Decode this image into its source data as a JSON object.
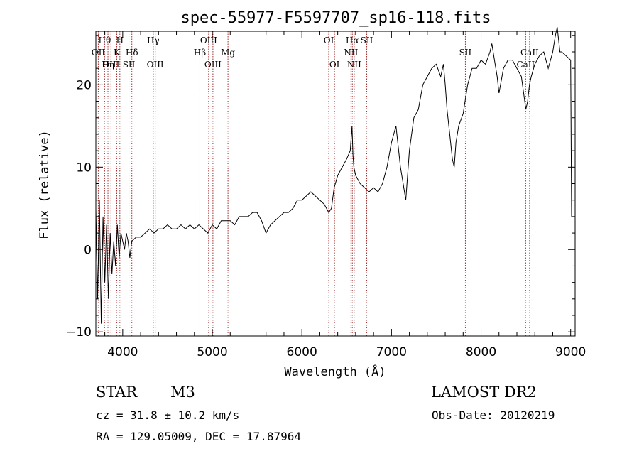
{
  "chart_data": {
    "type": "line",
    "title": "spec-55977-F5597707_sp16-118.fits",
    "xlabel": "Wavelength (Å)",
    "ylabel": "Flux (relative)",
    "xlim": [
      3700,
      9050
    ],
    "ylim": [
      -10.5,
      26.5
    ],
    "xticks": [
      4000,
      5000,
      6000,
      7000,
      8000,
      9000
    ],
    "yticks": [
      -10,
      0,
      10,
      20
    ],
    "grid": false,
    "series": [
      {
        "values_x": [
          3700,
          3720,
          3740,
          3760,
          3780,
          3800,
          3820,
          3840,
          3860,
          3880,
          3900,
          3920,
          3940,
          3960,
          3980,
          4000,
          4020,
          4040,
          4060,
          4080,
          4100,
          4150,
          4200,
          4250,
          4300,
          4350,
          4400,
          4450,
          4500,
          4550,
          4600,
          4650,
          4700,
          4750,
          4800,
          4850,
          4900,
          4950,
          5000,
          5050,
          5100,
          5150,
          5200,
          5250,
          5300,
          5350,
          5400,
          5450,
          5500,
          5550,
          5600,
          5650,
          5700,
          5750,
          5800,
          5850,
          5900,
          5950,
          6000,
          6050,
          6100,
          6150,
          6200,
          6250,
          6300,
          6330,
          6360,
          6400,
          6450,
          6500,
          6520,
          6540,
          6560,
          6570,
          6580,
          6600,
          6650,
          6700,
          6750,
          6800,
          6850,
          6900,
          6950,
          7000,
          7050,
          7100,
          7130,
          7160,
          7200,
          7250,
          7300,
          7350,
          7400,
          7450,
          7500,
          7550,
          7580,
          7600,
          7620,
          7650,
          7680,
          7700,
          7720,
          7750,
          7800,
          7850,
          7900,
          7950,
          8000,
          8050,
          8100,
          8120,
          8150,
          8180,
          8200,
          8250,
          8300,
          8350,
          8400,
          8450,
          8500,
          8520,
          8540,
          8560,
          8600,
          8650,
          8700,
          8750,
          8800,
          8830,
          8850,
          8880,
          8900,
          8950,
          9000,
          9010
        ],
        "values_y": [
          5,
          -6,
          6,
          -9,
          4,
          -4,
          3,
          -6,
          2,
          -3,
          1,
          -2,
          3,
          -1,
          2,
          1,
          0,
          2,
          1,
          -1,
          1,
          1.5,
          1.5,
          2,
          2.5,
          2,
          2.5,
          2.5,
          3,
          2.5,
          2.5,
          3,
          2.5,
          3,
          2.5,
          3,
          2.5,
          2,
          3,
          2.5,
          3.5,
          3.5,
          3.5,
          3,
          4,
          4,
          4,
          4.5,
          4.5,
          3.5,
          2,
          3,
          3.5,
          4,
          4.5,
          4.5,
          5,
          6,
          6,
          6.5,
          7,
          6.5,
          6,
          5.5,
          4.5,
          5,
          7.5,
          9,
          10,
          11,
          11.5,
          12,
          15,
          11.5,
          10,
          9,
          8,
          7.5,
          7,
          7.5,
          7,
          8,
          10,
          13,
          15,
          10,
          8,
          6,
          12,
          16,
          17,
          20,
          21,
          22,
          22.5,
          21,
          22.5,
          20,
          17,
          14,
          11,
          10,
          13,
          15,
          16.5,
          20,
          22,
          22,
          23,
          22.5,
          24,
          25,
          23,
          21,
          19,
          22,
          23,
          23,
          22,
          21,
          17,
          18,
          20,
          21,
          22.5,
          23.5,
          24,
          22,
          24,
          26,
          27,
          24,
          24,
          23.5,
          23,
          4
        ],
        "color": "#000000"
      }
    ],
    "spectral_lines": [
      {
        "label": "Hθ",
        "wavelength": 3798,
        "row": 1
      },
      {
        "label": "OII",
        "wavelength": 3727,
        "row": 2
      },
      {
        "label": "OIII",
        "wavelength": 3869,
        "row": 3
      },
      {
        "label": "Hη",
        "wavelength": 3835,
        "row": 3
      },
      {
        "label": "H",
        "wavelength": 3968,
        "row": 1
      },
      {
        "label": "K",
        "wavelength": 3934,
        "row": 2
      },
      {
        "label": "Hδ",
        "wavelength": 4102,
        "row": 2
      },
      {
        "label": "SII",
        "wavelength": 4069,
        "row": 3
      },
      {
        "label": "Hγ",
        "wavelength": 4341,
        "row": 1
      },
      {
        "label": "OIII",
        "wavelength": 4363,
        "row": 3
      },
      {
        "label": "OIII",
        "wavelength": 4959,
        "row": 1
      },
      {
        "label": "Hβ",
        "wavelength": 4861,
        "row": 2
      },
      {
        "label": "OIII",
        "wavelength": 5007,
        "row": 3
      },
      {
        "label": "Mg",
        "wavelength": 5175,
        "row": 2
      },
      {
        "label": "OI",
        "wavelength": 6300,
        "row": 1
      },
      {
        "label": "OI",
        "wavelength": 6364,
        "row": 3
      },
      {
        "label": "Hα",
        "wavelength": 6563,
        "row": 1
      },
      {
        "label": "SII",
        "wavelength": 6724,
        "row": 1
      },
      {
        "label": "NII",
        "wavelength": 6548,
        "row": 2
      },
      {
        "label": "NII",
        "wavelength": 6584,
        "row": 3
      },
      {
        "label": "SII",
        "wavelength": 7825,
        "row": 2
      },
      {
        "label": "CaII",
        "wavelength": 8542,
        "row": 2
      },
      {
        "label": "CaII",
        "wavelength": 8498,
        "row": 3
      }
    ],
    "spectral_line_color": "#a03030"
  },
  "info": {
    "object_class": "STAR",
    "subclass": "M3",
    "survey": "LAMOST DR2",
    "cz": "cz = 31.8 ± 10.2 km/s",
    "obs_date": "Obs-Date: 20120219",
    "coords": "RA = 129.05009, DEC =  17.87964"
  }
}
